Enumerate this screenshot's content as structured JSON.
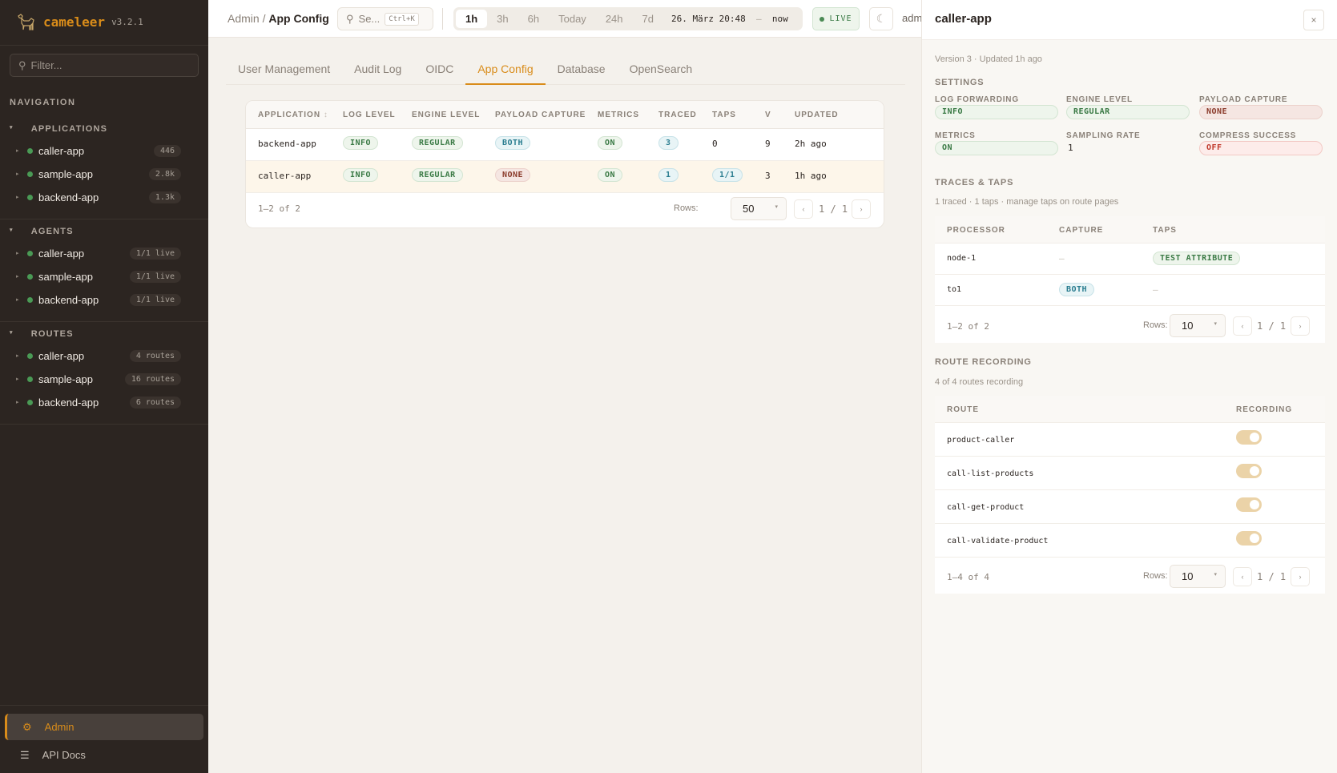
{
  "app": {
    "name": "cameleer",
    "version": "v3.2.1"
  },
  "sidebar": {
    "filter_placeholder": "Filter...",
    "nav_title": "NAVIGATION",
    "groups": [
      {
        "title": "APPLICATIONS",
        "items": [
          {
            "label": "caller-app",
            "badge": "446"
          },
          {
            "label": "sample-app",
            "badge": "2.8k"
          },
          {
            "label": "backend-app",
            "badge": "1.3k"
          }
        ]
      },
      {
        "title": "AGENTS",
        "items": [
          {
            "label": "caller-app",
            "badge": "1/1 live"
          },
          {
            "label": "sample-app",
            "badge": "1/1 live"
          },
          {
            "label": "backend-app",
            "badge": "1/1 live"
          }
        ]
      },
      {
        "title": "ROUTES",
        "items": [
          {
            "label": "caller-app",
            "badge": "4 routes"
          },
          {
            "label": "sample-app",
            "badge": "16 routes"
          },
          {
            "label": "backend-app",
            "badge": "6 routes"
          }
        ]
      }
    ],
    "bottom": [
      {
        "label": "Admin",
        "icon": "gear-icon",
        "active": true
      },
      {
        "label": "API Docs",
        "icon": "menu-icon"
      }
    ]
  },
  "header": {
    "breadcrumb": [
      "Admin",
      "App Config"
    ],
    "search_placeholder": "Se...",
    "search_shortcut": "Ctrl+K",
    "ranges": [
      "1h",
      "3h",
      "6h",
      "Today",
      "24h",
      "7d"
    ],
    "active_range": "1h",
    "date_from": "26. März 20:48",
    "date_sep": "—",
    "date_to": "now",
    "live": "LIVE",
    "user": "admin"
  },
  "tabs": [
    "User Management",
    "Audit Log",
    "OIDC",
    "App Config",
    "Database",
    "OpenSearch"
  ],
  "active_tab": "App Config",
  "table": {
    "columns": [
      "APPLICATION",
      "LOG LEVEL",
      "ENGINE LEVEL",
      "PAYLOAD CAPTURE",
      "METRICS",
      "TRACED",
      "TAPS",
      "V",
      "UPDATED"
    ],
    "rows": [
      {
        "application": "backend-app",
        "log_level": "INFO",
        "engine_level": "REGULAR",
        "payload_capture": "BOTH",
        "metrics": "ON",
        "traced": "3",
        "taps": "0",
        "v": "9",
        "updated": "2h ago"
      },
      {
        "application": "caller-app",
        "log_level": "INFO",
        "engine_level": "REGULAR",
        "payload_capture": "NONE",
        "metrics": "ON",
        "traced": "1",
        "taps": "1/1",
        "v": "3",
        "updated": "1h ago"
      }
    ],
    "count": "1–2 of 2",
    "rows_label": "Rows:",
    "rows_value": "50",
    "page": "1 / 1"
  },
  "panel": {
    "title": "caller-app",
    "close": "×",
    "meta": "Version 3 · Updated 1h ago",
    "settings_title": "SETTINGS",
    "settings": [
      {
        "label": "LOG FORWARDING",
        "value": "INFO"
      },
      {
        "label": "ENGINE LEVEL",
        "value": "REGULAR"
      },
      {
        "label": "PAYLOAD CAPTURE",
        "value": "NONE"
      },
      {
        "label": "METRICS",
        "value": "ON"
      },
      {
        "label": "SAMPLING RATE",
        "value": "1"
      },
      {
        "label": "COMPRESS SUCCESS",
        "value": "OFF"
      }
    ],
    "traces_title": "TRACES & TAPS",
    "traces_sub": "1 traced · 1 taps · manage taps on route pages",
    "traces_columns": [
      "PROCESSOR",
      "CAPTURE",
      "TAPS"
    ],
    "traces_rows": [
      {
        "processor": "node-1",
        "capture": "—",
        "taps": "TEST ATTRIBUTE"
      },
      {
        "processor": "to1",
        "capture": "BOTH",
        "taps": "—"
      }
    ],
    "traces_count": "1–2 of 2",
    "traces_rows_label": "Rows:",
    "traces_rows_value": "10",
    "traces_page": "1 / 1",
    "routes_title": "ROUTE RECORDING",
    "routes_sub": "4 of 4 routes recording",
    "routes_columns": [
      "ROUTE",
      "RECORDING"
    ],
    "routes": [
      {
        "name": "product-caller",
        "recording": true
      },
      {
        "name": "call-list-products",
        "recording": true
      },
      {
        "name": "call-get-product",
        "recording": true
      },
      {
        "name": "call-validate-product",
        "recording": true
      }
    ],
    "routes_count": "1–4 of 4",
    "routes_rows_label": "Rows:",
    "routes_rows_value": "10",
    "routes_page": "1 / 1"
  },
  "colors": {
    "accent": "#d98c1a",
    "sidebar": "#2c2521",
    "status_green": "#4a9a55"
  }
}
